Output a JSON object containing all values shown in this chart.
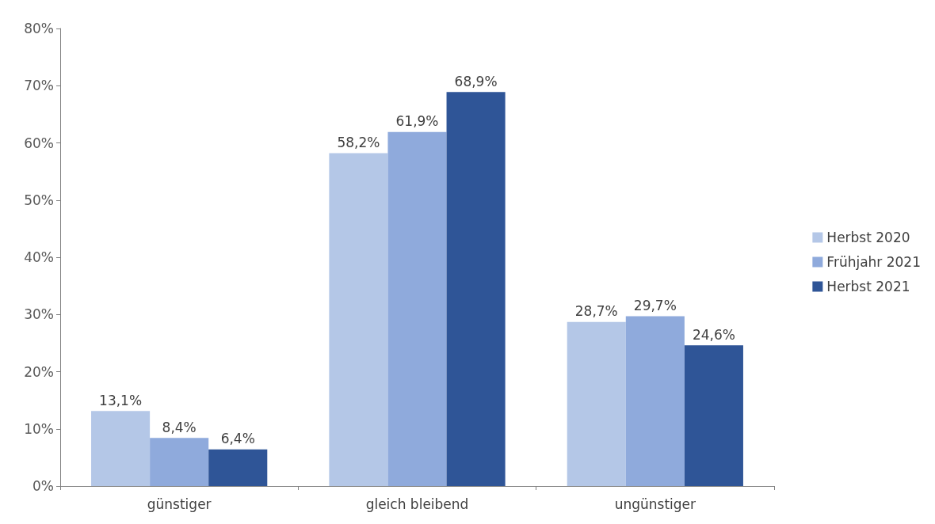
{
  "chart_data": {
    "type": "bar",
    "categories": [
      "günstiger",
      "gleich bleibend",
      "ungünstiger"
    ],
    "series": [
      {
        "name": "Herbst 2020",
        "color": "#b4c7e7",
        "values": [
          13.1,
          58.2,
          28.7
        ],
        "value_labels": [
          "13,1%",
          "58,2%",
          "28,7%"
        ]
      },
      {
        "name": "Frühjahr 2021",
        "color": "#8faadc",
        "values": [
          8.4,
          61.9,
          29.7
        ],
        "value_labels": [
          "8,4%",
          "61,9%",
          "29,7%"
        ]
      },
      {
        "name": "Herbst 2021",
        "color": "#2f5597",
        "values": [
          6.4,
          68.9,
          24.6
        ],
        "value_labels": [
          "6,4%",
          "68,9%",
          "24,6%"
        ]
      }
    ],
    "ylim": [
      0,
      80
    ],
    "yticks": [
      {
        "value": 0,
        "label": "0%"
      },
      {
        "value": 10,
        "label": "10%"
      },
      {
        "value": 20,
        "label": "20%"
      },
      {
        "value": 30,
        "label": "30%"
      },
      {
        "value": 40,
        "label": "40%"
      },
      {
        "value": 50,
        "label": "50%"
      },
      {
        "value": 60,
        "label": "60%"
      },
      {
        "value": 70,
        "label": "70%"
      },
      {
        "value": 80,
        "label": "80%"
      }
    ],
    "grid": false,
    "legend": "right"
  }
}
